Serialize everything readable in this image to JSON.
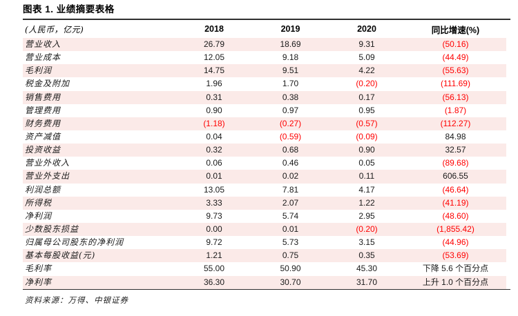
{
  "title": "图表 1. 业绩摘要表格",
  "source": "资料来源：万得、中银证券",
  "colors": {
    "stripe": "#fbeae8",
    "negative_text": "#ff0000",
    "rule": "#2f2f2f"
  },
  "table": {
    "unit_header": "(人民币，亿元)",
    "col_headers": [
      "2018",
      "2019",
      "2020",
      "同比增速(%)"
    ],
    "rows": [
      {
        "label": "营业收入",
        "y2018": "26.79",
        "y2019": "18.69",
        "y2020": "9.31",
        "yoy": "(50.16)"
      },
      {
        "label": "营业成本",
        "y2018": "12.05",
        "y2019": "9.18",
        "y2020": "5.09",
        "yoy": "(44.49)"
      },
      {
        "label": "毛利润",
        "y2018": "14.75",
        "y2019": "9.51",
        "y2020": "4.22",
        "yoy": "(55.63)"
      },
      {
        "label": "税金及附加",
        "y2018": "1.96",
        "y2019": "1.70",
        "y2020": "(0.20)",
        "yoy": "(111.69)"
      },
      {
        "label": "销售费用",
        "y2018": "0.31",
        "y2019": "0.38",
        "y2020": "0.17",
        "yoy": "(56.13)"
      },
      {
        "label": "管理费用",
        "y2018": "0.90",
        "y2019": "0.97",
        "y2020": "0.95",
        "yoy": "(1.87)"
      },
      {
        "label": "财务费用",
        "y2018": "(1.18)",
        "y2019": "(0.27)",
        "y2020": "(0.57)",
        "yoy": "(112.27)"
      },
      {
        "label": "资产减值",
        "y2018": "0.04",
        "y2019": "(0.59)",
        "y2020": "(0.09)",
        "yoy": "84.98"
      },
      {
        "label": "投资收益",
        "y2018": "0.32",
        "y2019": "0.68",
        "y2020": "0.90",
        "yoy": "32.57"
      },
      {
        "label": "营业外收入",
        "y2018": "0.06",
        "y2019": "0.46",
        "y2020": "0.05",
        "yoy": "(89.68)"
      },
      {
        "label": "营业外支出",
        "y2018": "0.01",
        "y2019": "0.02",
        "y2020": "0.11",
        "yoy": "606.55"
      },
      {
        "label": "利润总额",
        "y2018": "13.05",
        "y2019": "7.81",
        "y2020": "4.17",
        "yoy": "(46.64)"
      },
      {
        "label": "所得税",
        "y2018": "3.33",
        "y2019": "2.07",
        "y2020": "1.22",
        "yoy": "(41.19)"
      },
      {
        "label": "净利润",
        "y2018": "9.73",
        "y2019": "5.74",
        "y2020": "2.95",
        "yoy": "(48.60)"
      },
      {
        "label": "少数股东损益",
        "y2018": "0.00",
        "y2019": "0.01",
        "y2020": "(0.20)",
        "yoy": "(1,855.42)"
      },
      {
        "label": "归属母公司股东的净利润",
        "y2018": "9.72",
        "y2019": "5.73",
        "y2020": "3.15",
        "yoy": "(44.96)"
      },
      {
        "label": "基本每股收益(元)",
        "y2018": "1.21",
        "y2019": "0.75",
        "y2020": "0.35",
        "yoy": "(53.69)"
      },
      {
        "label": "毛利率",
        "y2018": "55.00",
        "y2019": "50.90",
        "y2020": "45.30",
        "yoy": "下降 5.6 个百分点"
      },
      {
        "label": "净利率",
        "y2018": "36.30",
        "y2019": "30.70",
        "y2020": "31.70",
        "yoy": "上升 1.0 个百分点"
      }
    ]
  }
}
